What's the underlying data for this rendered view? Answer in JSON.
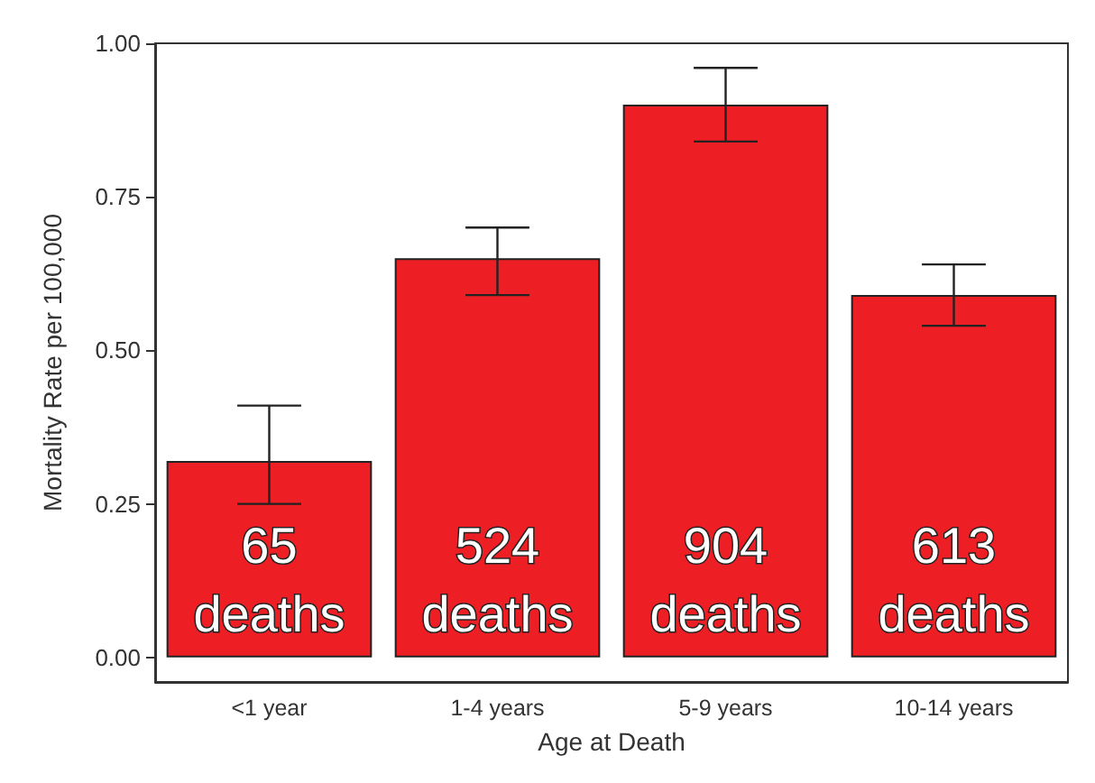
{
  "chart_data": {
    "type": "bar",
    "xlabel": "Age at Death",
    "ylabel": "Mortality Rate per 100,000",
    "categories": [
      "<1 year",
      "1-4 years",
      "5-9 years",
      "10-14 years"
    ],
    "values": [
      0.32,
      0.65,
      0.9,
      0.59
    ],
    "errors": [
      [
        0.25,
        0.41
      ],
      [
        0.59,
        0.7
      ],
      [
        0.84,
        0.96
      ],
      [
        0.54,
        0.64
      ]
    ],
    "color": "#ed1f24",
    "ylim": [
      -0.04,
      1.0
    ],
    "yticks": [
      {
        "value": 0,
        "label": "0.00"
      },
      {
        "value": 0.25,
        "label": "0.25"
      },
      {
        "value": 0.5,
        "label": "0.50"
      },
      {
        "value": 0.75,
        "label": "0.75"
      },
      {
        "value": 1,
        "label": "1.00"
      }
    ],
    "grid": false,
    "annotations": [
      "65 deaths",
      "524 deaths",
      "904 deaths",
      "613 deaths"
    ]
  }
}
